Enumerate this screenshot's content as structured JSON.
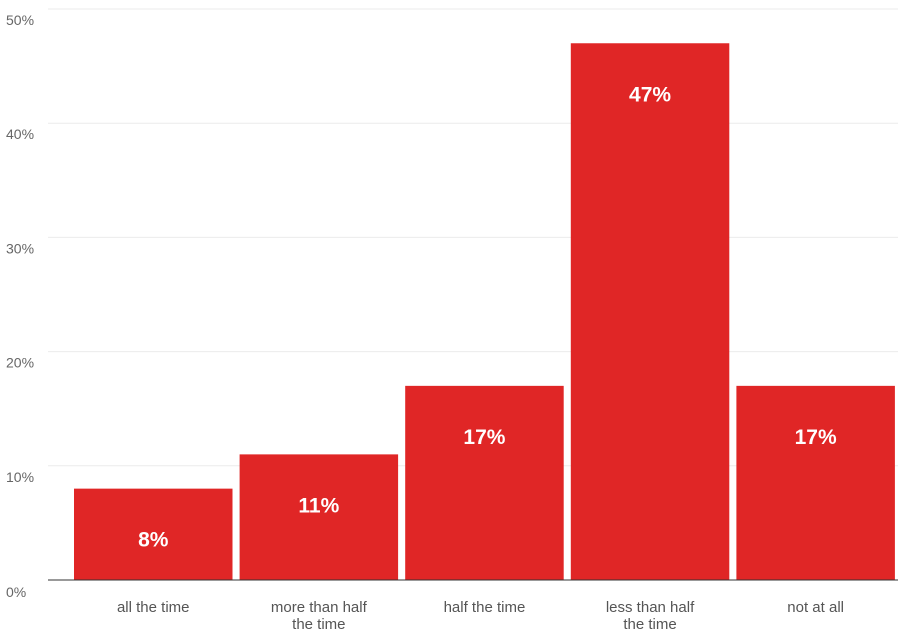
{
  "chart_data": {
    "type": "bar",
    "categories": [
      [
        "all the time"
      ],
      [
        "more than half",
        "the time"
      ],
      [
        "half the time"
      ],
      [
        "less than half",
        "the time"
      ],
      [
        "not at all"
      ]
    ],
    "values": [
      8,
      11,
      17,
      47,
      17
    ],
    "data_labels": [
      "8%",
      "11%",
      "17%",
      "47%",
      "17%"
    ],
    "y_ticks": [
      0,
      10,
      20,
      30,
      40,
      50
    ],
    "y_tick_labels": [
      "0%",
      "10%",
      "20%",
      "30%",
      "40%",
      "50%"
    ],
    "ylim": [
      0,
      50
    ],
    "title": "",
    "xlabel": "",
    "ylabel": "",
    "grid": true,
    "bar_color": "#e02626"
  }
}
